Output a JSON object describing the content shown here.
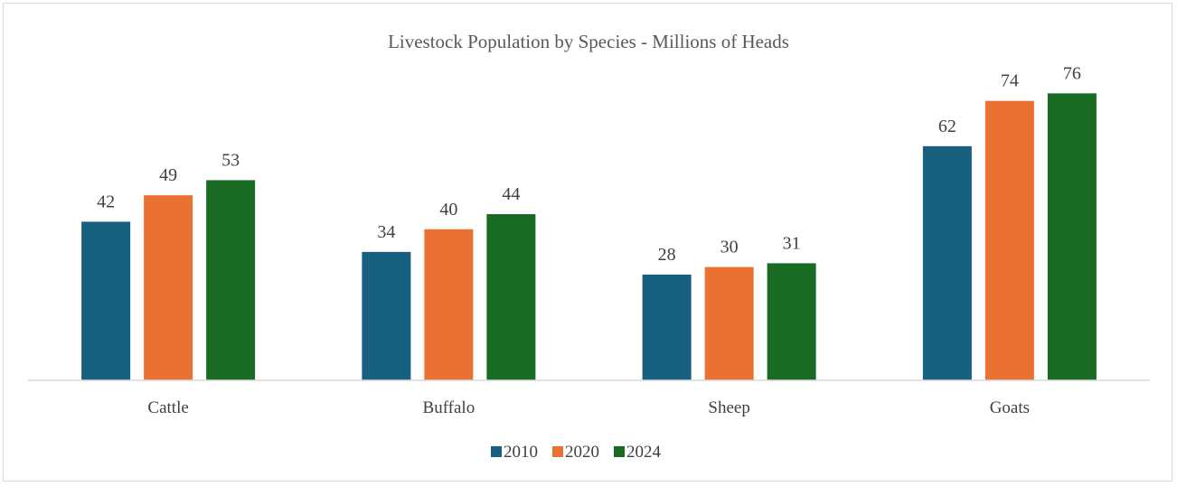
{
  "chart_data": {
    "type": "bar",
    "title": "Livestock Population by Species - Millions of Heads",
    "xlabel": "",
    "ylabel": "",
    "categories": [
      "Cattle",
      "Buffalo",
      "Sheep",
      "Goats"
    ],
    "series": [
      {
        "name": "2010",
        "color": "#17607f",
        "values": [
          42,
          34,
          28,
          62
        ]
      },
      {
        "name": "2020",
        "color": "#e97132",
        "values": [
          49,
          40,
          30,
          74
        ]
      },
      {
        "name": "2024",
        "color": "#196b24",
        "values": [
          53,
          44,
          31,
          76
        ]
      }
    ],
    "ylim": [
      0,
      80
    ],
    "grid": false,
    "data_labels": true,
    "legend_position": "bottom"
  }
}
